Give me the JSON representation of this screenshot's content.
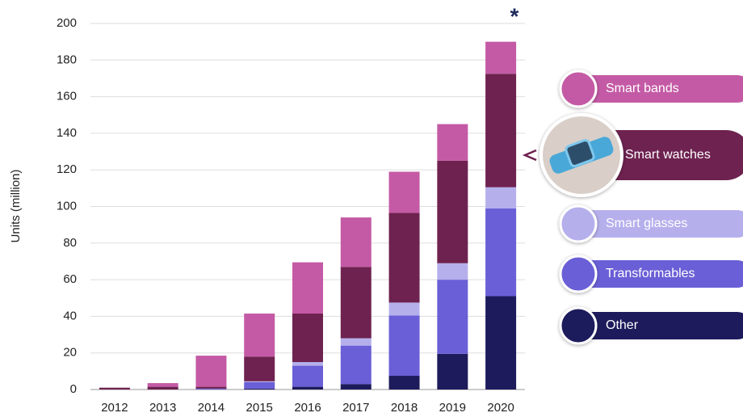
{
  "chart_data": {
    "type": "stacked_bar",
    "y_label": "Units (million)",
    "annotation": "*",
    "categories": [
      "2012",
      "2013",
      "2014",
      "2015",
      "2016",
      "2017",
      "2018",
      "2019",
      "2020"
    ],
    "series": [
      {
        "name": "Other",
        "color": "#1e1b5c",
        "values": [
          0,
          0,
          0,
          0.5,
          1.5,
          3,
          7.5,
          19.5,
          51
        ]
      },
      {
        "name": "Transformables",
        "color": "#6a5fd6",
        "values": [
          0,
          0,
          0.5,
          3.5,
          11.5,
          21,
          33,
          40.5,
          48
        ]
      },
      {
        "name": "Smart glasses",
        "color": "#b5b0ec",
        "values": [
          0,
          0,
          0,
          0.5,
          2,
          4,
          7,
          9,
          11.5
        ]
      },
      {
        "name": "Smart watches",
        "color": "#6e2250",
        "values": [
          1,
          1.5,
          1,
          13.5,
          26.5,
          39,
          49,
          56,
          62
        ]
      },
      {
        "name": "Smart bands",
        "color": "#c45aa5",
        "values": [
          0,
          2,
          17,
          23.5,
          28,
          27,
          22.5,
          20,
          17.5
        ]
      }
    ],
    "ylim": [
      0,
      200
    ],
    "yticks": [
      0,
      20,
      40,
      60,
      80,
      100,
      120,
      140,
      160,
      180,
      200
    ],
    "grid": true
  }
}
